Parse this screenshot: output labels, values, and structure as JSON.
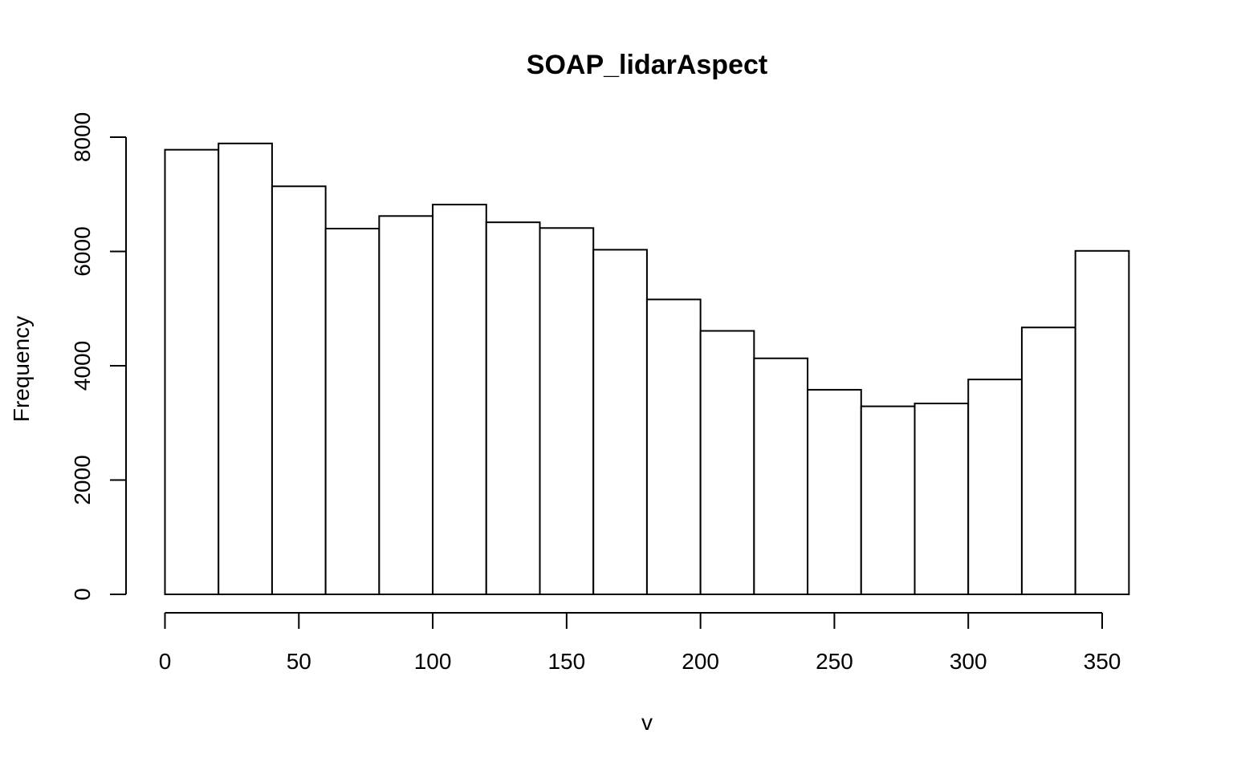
{
  "chart_data": {
    "type": "bar",
    "title": "SOAP_lidarAspect",
    "xlabel": "v",
    "ylabel": "Frequency",
    "bin_width": 20,
    "bins": [
      {
        "x0": 0,
        "x1": 20,
        "count": 7780
      },
      {
        "x0": 20,
        "x1": 40,
        "count": 7890
      },
      {
        "x0": 40,
        "x1": 60,
        "count": 7140
      },
      {
        "x0": 60,
        "x1": 80,
        "count": 6400
      },
      {
        "x0": 80,
        "x1": 100,
        "count": 6620
      },
      {
        "x0": 100,
        "x1": 120,
        "count": 6820
      },
      {
        "x0": 120,
        "x1": 140,
        "count": 6510
      },
      {
        "x0": 140,
        "x1": 160,
        "count": 6410
      },
      {
        "x0": 160,
        "x1": 180,
        "count": 6030
      },
      {
        "x0": 180,
        "x1": 200,
        "count": 5160
      },
      {
        "x0": 200,
        "x1": 220,
        "count": 4610
      },
      {
        "x0": 220,
        "x1": 240,
        "count": 4130
      },
      {
        "x0": 240,
        "x1": 260,
        "count": 3580
      },
      {
        "x0": 260,
        "x1": 280,
        "count": 3290
      },
      {
        "x0": 280,
        "x1": 300,
        "count": 3340
      },
      {
        "x0": 300,
        "x1": 320,
        "count": 3760
      },
      {
        "x0": 320,
        "x1": 340,
        "count": 4670
      },
      {
        "x0": 340,
        "x1": 360,
        "count": 6010
      }
    ],
    "x_ticks": [
      0,
      50,
      100,
      150,
      200,
      250,
      300,
      350
    ],
    "y_ticks": [
      0,
      2000,
      4000,
      6000,
      8000
    ],
    "xlim": [
      0,
      360
    ],
    "ylim": [
      0,
      8000
    ],
    "grid": false,
    "legend": "none"
  }
}
